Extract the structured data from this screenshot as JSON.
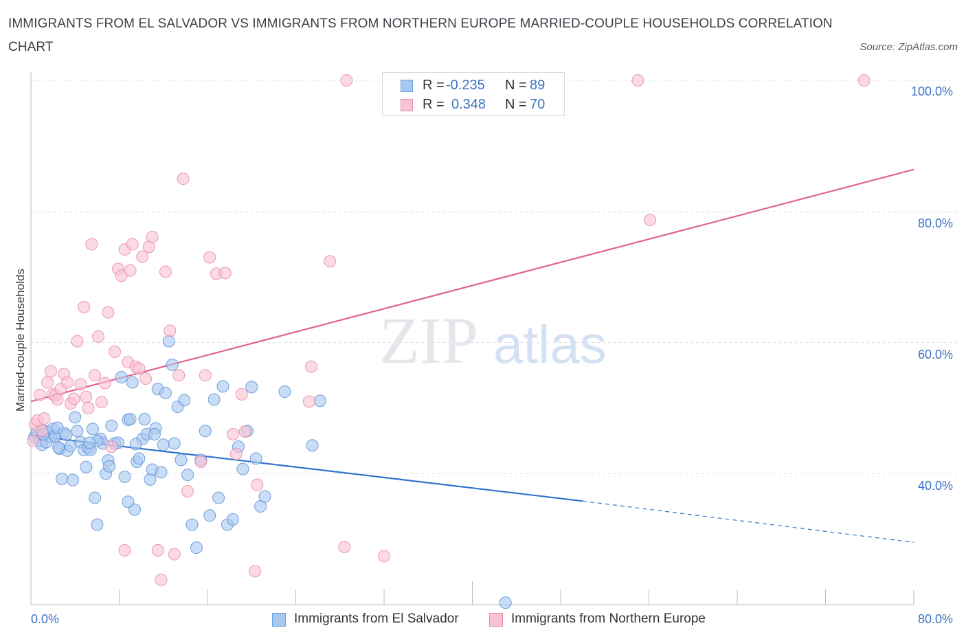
{
  "title": "IMMIGRANTS FROM EL SALVADOR VS IMMIGRANTS FROM NORTHERN EUROPE MARRIED-COUPLE HOUSEHOLDS CORRELATION CHART",
  "source": "Source: ZipAtlas.com",
  "watermark": {
    "zip": "ZIP",
    "atlas": "atlas"
  },
  "legend_top": [
    {
      "r_label": "R =",
      "r_value": "-0.235",
      "n_label": "N =",
      "n_value": "89",
      "color": "#a9c8f0",
      "edge": "#6b9ee0"
    },
    {
      "r_label": "R =",
      "r_value": "0.348",
      "n_label": "N =",
      "n_value": "70",
      "color": "#f8c4d3",
      "edge": "#e88aa7"
    }
  ],
  "colors": {
    "blue_fill": "#a9c8f0",
    "blue_edge": "#5b8fd6",
    "blue_line": "#3173cf",
    "pink_fill": "#f8c4d3",
    "pink_edge": "#e88aa7",
    "pink_line": "#e0648d",
    "axis_text": "#3b72c4",
    "grid": "#dde1e6"
  },
  "chart_data": {
    "type": "scatter",
    "xlabel": "",
    "ylabel": "Married-couple Households",
    "xlim": [
      0,
      80
    ],
    "ylim": [
      20,
      100
    ],
    "x_ticks": [
      "0.0%",
      "80.0%"
    ],
    "y_ticks": [
      "40.0%",
      "60.0%",
      "80.0%",
      "100.0%"
    ],
    "y_tick_values": [
      40,
      60,
      80,
      100
    ],
    "grid": true,
    "series": [
      {
        "name": "Immigrants from El Salvador",
        "color": "#a9c8f0",
        "trend": {
          "x0": 0,
          "y0": 45.8,
          "x1": 50,
          "y1": 35.8,
          "dash_to_x": 80,
          "dash_to_y": 29.5
        },
        "points": [
          [
            0.3,
            45.5
          ],
          [
            0.5,
            46.2
          ],
          [
            0.8,
            45.0
          ],
          [
            1.0,
            44.4
          ],
          [
            1.2,
            46.5
          ],
          [
            1.4,
            44.8
          ],
          [
            1.6,
            46.3
          ],
          [
            1.8,
            45.6
          ],
          [
            2.0,
            46.8
          ],
          [
            2.2,
            45.7
          ],
          [
            2.4,
            47.0
          ],
          [
            2.6,
            43.8
          ],
          [
            2.8,
            39.2
          ],
          [
            3.0,
            46.2
          ],
          [
            3.3,
            43.5
          ],
          [
            3.6,
            44.2
          ],
          [
            3.8,
            39.0
          ],
          [
            4.0,
            48.6
          ],
          [
            4.2,
            46.5
          ],
          [
            4.5,
            44.8
          ],
          [
            4.8,
            43.6
          ],
          [
            5.0,
            41.0
          ],
          [
            5.2,
            43.9
          ],
          [
            5.4,
            43.6
          ],
          [
            5.6,
            46.8
          ],
          [
            5.8,
            36.3
          ],
          [
            6.0,
            32.2
          ],
          [
            6.3,
            45.3
          ],
          [
            6.5,
            44.6
          ],
          [
            6.8,
            40.0
          ],
          [
            7.0,
            42.0
          ],
          [
            7.3,
            47.3
          ],
          [
            7.6,
            44.6
          ],
          [
            7.9,
            44.7
          ],
          [
            8.2,
            54.7
          ],
          [
            8.5,
            39.5
          ],
          [
            8.8,
            48.2
          ],
          [
            9.0,
            48.3
          ],
          [
            9.2,
            53.9
          ],
          [
            9.4,
            34.5
          ],
          [
            9.6,
            41.8
          ],
          [
            9.8,
            42.3
          ],
          [
            10.1,
            45.3
          ],
          [
            10.3,
            48.3
          ],
          [
            10.5,
            46.0
          ],
          [
            10.8,
            39.1
          ],
          [
            11.0,
            40.6
          ],
          [
            11.3,
            46.9
          ],
          [
            11.5,
            52.9
          ],
          [
            11.8,
            40.2
          ],
          [
            12.0,
            44.4
          ],
          [
            12.2,
            52.3
          ],
          [
            12.5,
            60.2
          ],
          [
            12.8,
            56.6
          ],
          [
            13.0,
            44.6
          ],
          [
            13.3,
            50.2
          ],
          [
            13.6,
            42.1
          ],
          [
            13.9,
            51.2
          ],
          [
            14.2,
            39.8
          ],
          [
            14.6,
            32.2
          ],
          [
            15.0,
            28.7
          ],
          [
            15.4,
            42.1
          ],
          [
            15.8,
            46.5
          ],
          [
            16.2,
            33.6
          ],
          [
            16.6,
            51.3
          ],
          [
            17.0,
            36.3
          ],
          [
            17.4,
            53.3
          ],
          [
            17.8,
            32.2
          ],
          [
            18.3,
            33.0
          ],
          [
            18.8,
            44.1
          ],
          [
            19.2,
            40.7
          ],
          [
            19.6,
            46.5
          ],
          [
            20.0,
            53.2
          ],
          [
            20.4,
            42.3
          ],
          [
            20.8,
            35.0
          ],
          [
            21.2,
            36.5
          ],
          [
            23.0,
            52.5
          ],
          [
            25.5,
            44.3
          ],
          [
            26.2,
            51.1
          ],
          [
            43.0,
            20.3
          ],
          [
            7.1,
            41.1
          ],
          [
            8.8,
            35.7
          ],
          [
            11.2,
            46.0
          ],
          [
            6.0,
            45.0
          ],
          [
            3.2,
            45.9
          ],
          [
            1.1,
            46.0
          ],
          [
            2.5,
            44.0
          ],
          [
            5.3,
            44.7
          ],
          [
            9.5,
            44.5
          ]
        ]
      },
      {
        "name": "Immigrants from Northern Europe",
        "color": "#f8c4d3",
        "trend": {
          "x0": 0,
          "y0": 51.0,
          "x1": 80,
          "y1": 86.4
        },
        "points": [
          [
            0.2,
            45.0
          ],
          [
            0.4,
            47.5
          ],
          [
            0.6,
            48.1
          ],
          [
            0.8,
            52.0
          ],
          [
            1.0,
            46.5
          ],
          [
            1.2,
            48.4
          ],
          [
            1.5,
            53.9
          ],
          [
            1.8,
            55.6
          ],
          [
            2.0,
            52.1
          ],
          [
            2.2,
            51.9
          ],
          [
            2.4,
            51.3
          ],
          [
            2.7,
            52.9
          ],
          [
            3.0,
            55.2
          ],
          [
            3.3,
            53.9
          ],
          [
            3.6,
            50.7
          ],
          [
            3.9,
            51.4
          ],
          [
            4.2,
            60.2
          ],
          [
            4.5,
            53.6
          ],
          [
            4.8,
            65.4
          ],
          [
            5.0,
            51.7
          ],
          [
            5.2,
            50.0
          ],
          [
            5.5,
            75.0
          ],
          [
            5.8,
            55.0
          ],
          [
            6.1,
            60.9
          ],
          [
            6.4,
            50.9
          ],
          [
            6.7,
            53.8
          ],
          [
            7.0,
            64.6
          ],
          [
            7.3,
            44.1
          ],
          [
            7.6,
            58.6
          ],
          [
            7.9,
            71.2
          ],
          [
            8.2,
            70.2
          ],
          [
            8.5,
            74.2
          ],
          [
            8.8,
            57.0
          ],
          [
            9.0,
            71.0
          ],
          [
            9.2,
            75.0
          ],
          [
            9.5,
            56.3
          ],
          [
            9.8,
            56.0
          ],
          [
            10.1,
            73.1
          ],
          [
            10.4,
            54.5
          ],
          [
            10.7,
            74.6
          ],
          [
            11.0,
            76.1
          ],
          [
            11.5,
            28.3
          ],
          [
            11.8,
            23.8
          ],
          [
            12.2,
            70.8
          ],
          [
            12.6,
            61.8
          ],
          [
            13.0,
            27.7
          ],
          [
            13.4,
            55.0
          ],
          [
            13.8,
            85.0
          ],
          [
            14.2,
            37.3
          ],
          [
            15.4,
            41.8
          ],
          [
            15.8,
            55.0
          ],
          [
            16.2,
            73.0
          ],
          [
            16.8,
            70.5
          ],
          [
            17.6,
            70.6
          ],
          [
            18.3,
            46.0
          ],
          [
            18.6,
            43.0
          ],
          [
            19.1,
            52.1
          ],
          [
            19.4,
            46.4
          ],
          [
            20.3,
            25.1
          ],
          [
            25.4,
            56.3
          ],
          [
            25.2,
            51.0
          ],
          [
            27.1,
            72.4
          ],
          [
            28.4,
            28.8
          ],
          [
            28.6,
            100
          ],
          [
            32.0,
            27.4
          ],
          [
            55.0,
            100
          ],
          [
            56.1,
            78.7
          ],
          [
            75.5,
            100
          ],
          [
            20.5,
            38.3
          ],
          [
            8.5,
            28.3
          ]
        ]
      }
    ]
  }
}
